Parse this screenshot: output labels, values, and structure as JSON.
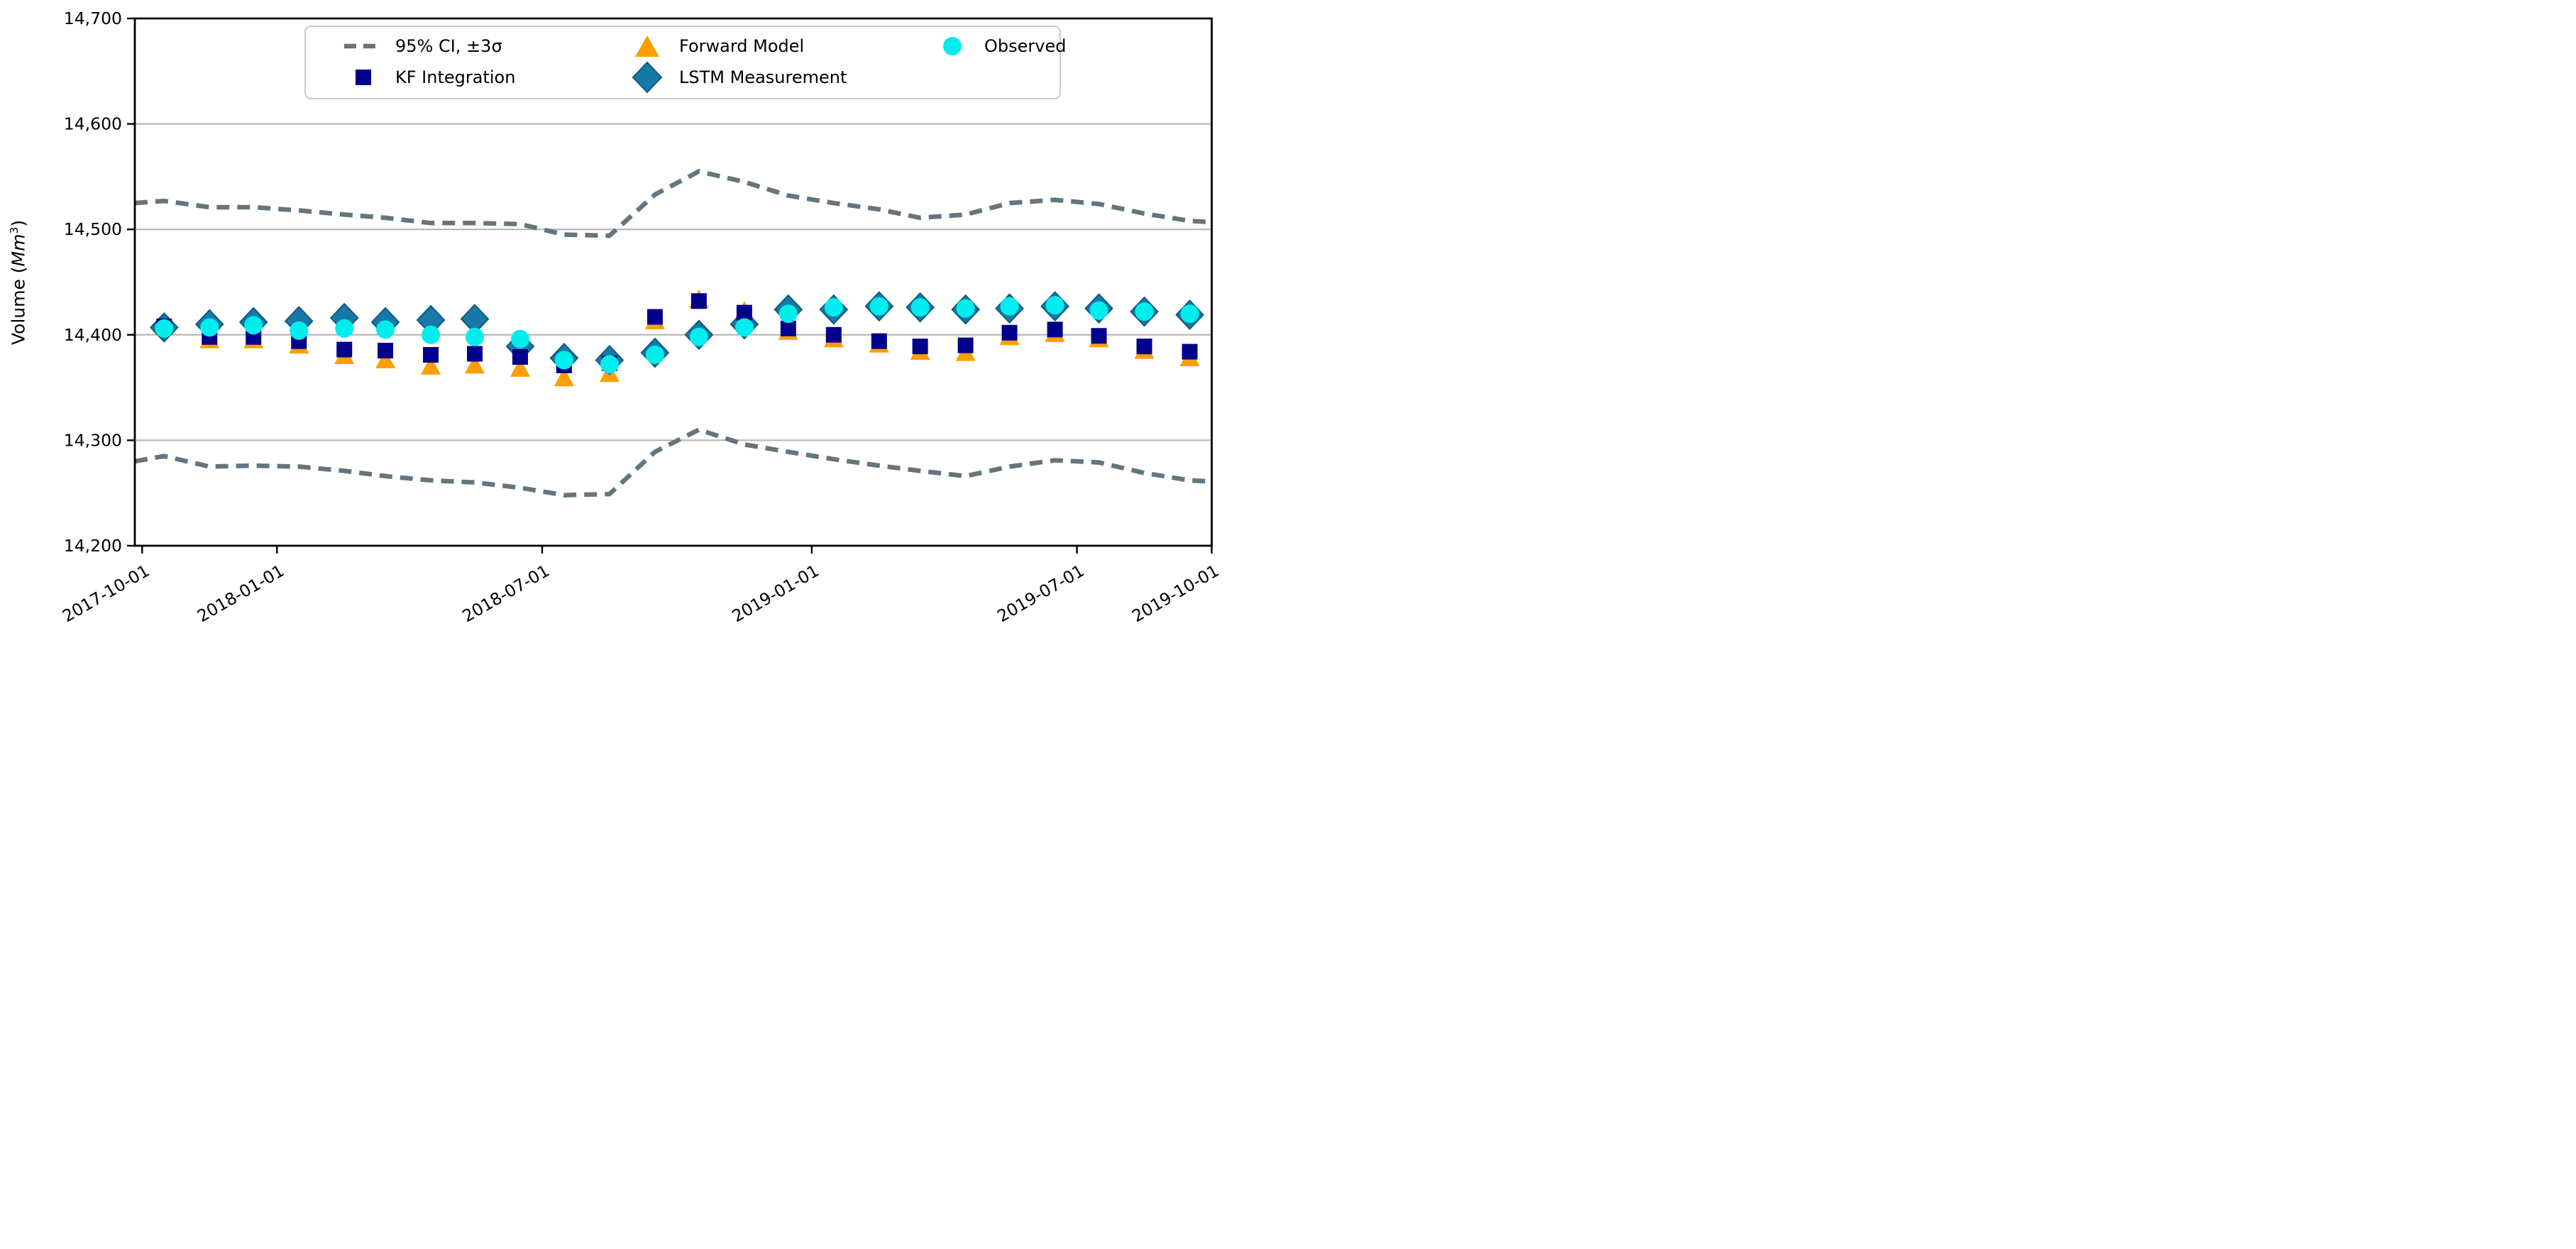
{
  "figure": {
    "background": "#ffffff",
    "ylabel": {
      "prefix": "Volume (",
      "math": "Mm",
      "sup": "3",
      "suffix": ")"
    },
    "colors": {
      "ci": "#64757e",
      "kf": "#00008b",
      "forward": "#ff9e00",
      "lstm_fill": "#1779a8",
      "lstm_edge": "#0e5a7f",
      "observed": "#00eded",
      "grid": "#b0b0b0",
      "spine": "#000000",
      "legend_border": "#cbcbcb"
    },
    "legend": {
      "items": [
        {
          "id": "ci",
          "label": "95% CI, ±3σ",
          "marker": "dashed-line"
        },
        {
          "id": "fwd",
          "label": "Forward Model",
          "marker": "triangle"
        },
        {
          "id": "obs",
          "label": "Observed",
          "marker": "circle"
        },
        {
          "id": "kf",
          "label": "KF Integration",
          "marker": "square"
        },
        {
          "id": "lstm",
          "label": "LSTM Measurement",
          "marker": "diamond"
        }
      ]
    }
  },
  "chart_data": {
    "type": "scatter",
    "title": "",
    "xlabel": "",
    "ylabel": "Volume (Mm3)",
    "ylim": [
      14200,
      14700
    ],
    "grid": "horizontal",
    "grid_values": [
      14300,
      14400,
      14500,
      14600
    ],
    "yticks": [
      {
        "value": 14200,
        "label": "14,200"
      },
      {
        "value": 14300,
        "label": "14,300"
      },
      {
        "value": 14400,
        "label": "14,400"
      },
      {
        "value": 14500,
        "label": "14,500"
      },
      {
        "value": 14600,
        "label": "14,600"
      },
      {
        "value": 14700,
        "label": "14,700"
      }
    ],
    "xticks": [
      {
        "date": "2017-10-01",
        "label": "2017-10-01"
      },
      {
        "date": "2018-01-01",
        "label": "2018-01-01"
      },
      {
        "date": "2018-07-01",
        "label": "2018-07-01"
      },
      {
        "date": "2019-01-01",
        "label": "2019-01-01"
      },
      {
        "date": "2019-07-01",
        "label": "2019-07-01"
      },
      {
        "date": "2019-10-01",
        "label": "2019-10-01"
      }
    ],
    "x_domain_dates": [
      "2017-09-26",
      "2019-10-01"
    ],
    "point_dates": [
      "2017-10-16",
      "2017-11-16",
      "2017-12-16",
      "2018-01-16",
      "2018-02-16",
      "2018-03-16",
      "2018-04-16",
      "2018-05-16",
      "2018-06-16",
      "2018-07-16",
      "2018-08-16",
      "2018-09-16",
      "2018-10-16",
      "2018-11-16",
      "2018-12-16",
      "2019-01-16",
      "2019-02-16",
      "2019-03-16",
      "2019-04-16",
      "2019-05-16",
      "2019-06-16",
      "2019-07-16",
      "2019-08-16",
      "2019-09-16"
    ],
    "ci_band": {
      "name": "95% CI, ±3σ",
      "style": "dashed",
      "dates": [
        "2017-09-26",
        "2017-10-16",
        "2017-11-16",
        "2017-12-16",
        "2018-01-16",
        "2018-02-16",
        "2018-03-16",
        "2018-04-16",
        "2018-05-16",
        "2018-06-16",
        "2018-07-16",
        "2018-08-16",
        "2018-09-16",
        "2018-10-16",
        "2018-11-16",
        "2018-12-16",
        "2019-01-16",
        "2019-02-16",
        "2019-03-16",
        "2019-04-16",
        "2019-05-16",
        "2019-06-16",
        "2019-07-16",
        "2019-08-16",
        "2019-09-16",
        "2019-09-30"
      ],
      "upper": [
        14525,
        14527,
        14521,
        14521,
        14518,
        14514,
        14511,
        14506,
        14506,
        14505,
        14495,
        14494,
        14533,
        14555,
        14545,
        14532,
        14525,
        14519,
        14511,
        14514,
        14525,
        14528,
        14524,
        14515,
        14508,
        14507
      ],
      "lower": [
        14280,
        14285,
        14275,
        14276,
        14275,
        14271,
        14266,
        14262,
        14260,
        14255,
        14248,
        14249,
        14289,
        14310,
        14296,
        14289,
        14282,
        14276,
        14271,
        14266,
        14275,
        14281,
        14279,
        14269,
        14262,
        14261
      ]
    },
    "series": [
      {
        "name": "Forward Model",
        "marker": "triangle",
        "values": [
          14409,
          14396,
          14396,
          14391,
          14381,
          14377,
          14371,
          14372,
          14369,
          14360,
          14364,
          14414,
          14434,
          14423,
          14404,
          14397,
          14392,
          14385,
          14384,
          14399,
          14402,
          14397,
          14386,
          14379
        ]
      },
      {
        "name": "LSTM Measurement",
        "marker": "diamond",
        "values": [
          14407,
          14410,
          14412,
          14413,
          14416,
          14412,
          14414,
          14415,
          14389,
          14378,
          14376,
          14383,
          14400,
          14410,
          14424,
          14424,
          14427,
          14426,
          14424,
          14425,
          14427,
          14425,
          14422,
          14419
        ]
      },
      {
        "name": "KF Integration",
        "marker": "square",
        "values": [
          14408,
          14398,
          14398,
          14394,
          14386,
          14385,
          14381,
          14382,
          14379,
          14371,
          14373,
          14417,
          14432,
          14421,
          14406,
          14400,
          14394,
          14389,
          14390,
          14402,
          14405,
          14399,
          14389,
          14384
        ]
      },
      {
        "name": "Observed",
        "marker": "circle",
        "values": [
          14406,
          14407,
          14409,
          14404,
          14406,
          14405,
          14400,
          14398,
          14396,
          14376,
          14372,
          14381,
          14398,
          14407,
          14420,
          14426,
          14427,
          14426,
          14425,
          14427,
          14428,
          14423,
          14422,
          14420
        ]
      }
    ]
  }
}
